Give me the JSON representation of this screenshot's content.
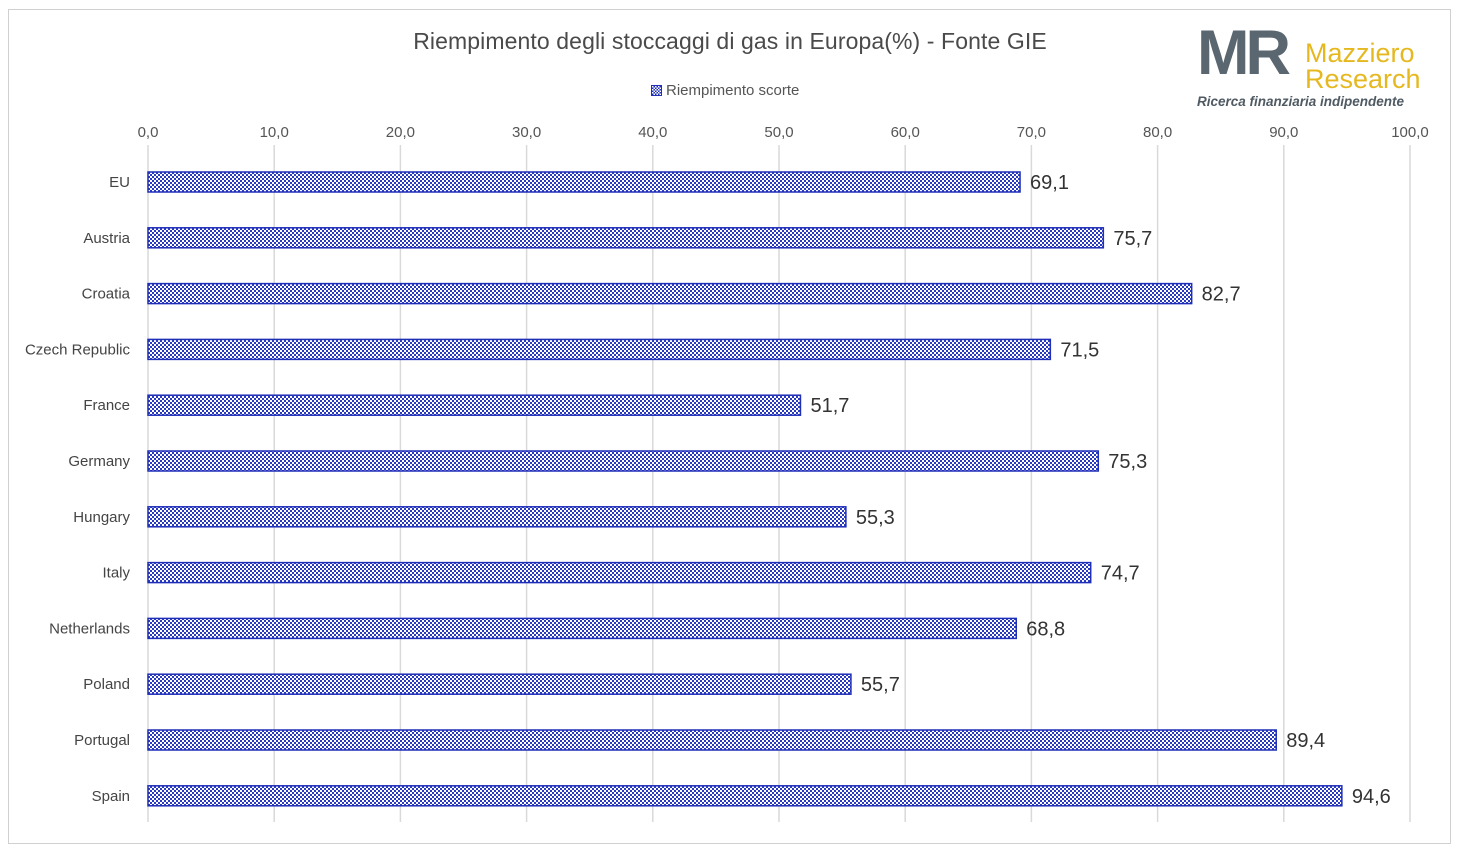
{
  "chart_data": {
    "type": "bar",
    "orientation": "horizontal",
    "title": "Riempimento degli stoccaggi di gas in Europa(%) - Fonte GIE",
    "categories": [
      "EU",
      "Austria",
      "Croatia",
      "Czech Republic",
      "France",
      "Germany",
      "Hungary",
      "Italy",
      "Netherlands",
      "Poland",
      "Portugal",
      "Spain"
    ],
    "series": [
      {
        "name": "Riempimento scorte",
        "values": [
          69.1,
          75.7,
          82.7,
          71.5,
          51.7,
          75.3,
          55.3,
          74.7,
          68.8,
          55.7,
          89.4,
          94.6
        ],
        "value_labels": [
          "69,1",
          "75,7",
          "82,7",
          "71,5",
          "51,7",
          "75,3",
          "55,3",
          "74,7",
          "68,8",
          "55,7",
          "89,4",
          "94,6"
        ],
        "color": "#1f2fb8",
        "fill_pattern": "checkerboard"
      }
    ],
    "xlim": [
      0,
      100
    ],
    "xticks": [
      0,
      10,
      20,
      30,
      40,
      50,
      60,
      70,
      80,
      90,
      100
    ],
    "xtick_labels": [
      "0,0",
      "10,0",
      "20,0",
      "30,0",
      "40,0",
      "50,0",
      "60,0",
      "70,0",
      "80,0",
      "90,0",
      "100,0"
    ],
    "x_axis_position": "top",
    "grid": true,
    "legend_position": "top"
  },
  "logo": {
    "mark": "MR",
    "name_line1": "Mazziero",
    "name_line2": "Research",
    "tagline": "Ricerca finanziaria indipendente"
  },
  "colors": {
    "bar": "#1f2fb8",
    "grid": "#d9d9d9",
    "logo_gray": "#5b6770",
    "logo_gold": "#e6b820"
  }
}
